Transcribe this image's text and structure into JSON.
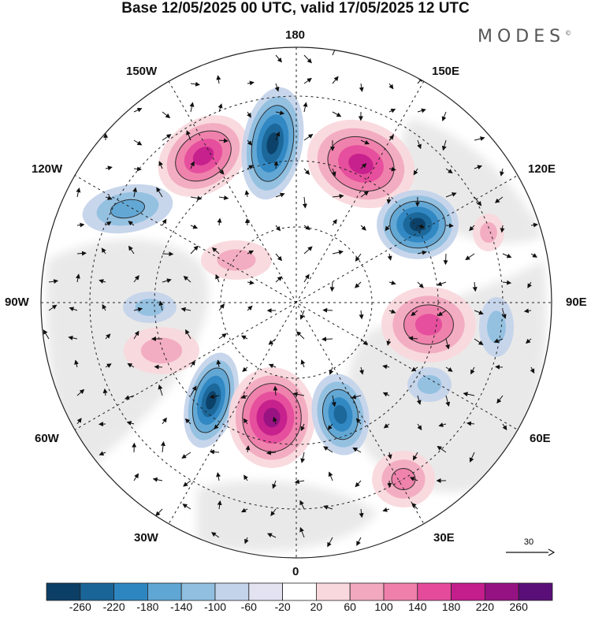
{
  "title": "Base 12/05/2025 00 UTC, valid 17/05/2025 12 UTC",
  "brand": {
    "name": "MODES",
    "mark": "©"
  },
  "map": {
    "projection": "north-polar-stereographic",
    "longitude_labels": {
      "top": "180",
      "bottom": "0",
      "left": "90W",
      "right": "90E",
      "upper_left_1": "150W",
      "upper_left_2": "120W",
      "upper_right_1": "150E",
      "upper_right_2": "120E",
      "lower_left_1": "60W",
      "lower_left_2": "30W",
      "lower_right_1": "60E",
      "lower_right_2": "30E"
    },
    "reference_vector": "30",
    "colors": {
      "negative": [
        "#0b3f66",
        "#1a6598",
        "#2e86c1",
        "#5fa6d4",
        "#90bfe0",
        "#c3d3ea",
        "#e2e2f1"
      ],
      "neutral": "#ffffff",
      "positive": [
        "#f8d8dc",
        "#f2a9bf",
        "#ef7fab",
        "#e54b9b",
        "#c41d8c",
        "#951282",
        "#5a0f78"
      ],
      "land_shade": "#e8e8e8"
    }
  },
  "colorbar": {
    "ticks": [
      "-260",
      "-220",
      "-180",
      "-140",
      "-100",
      "-60",
      "-20",
      "20",
      "60",
      "100",
      "140",
      "180",
      "220",
      "260"
    ]
  }
}
